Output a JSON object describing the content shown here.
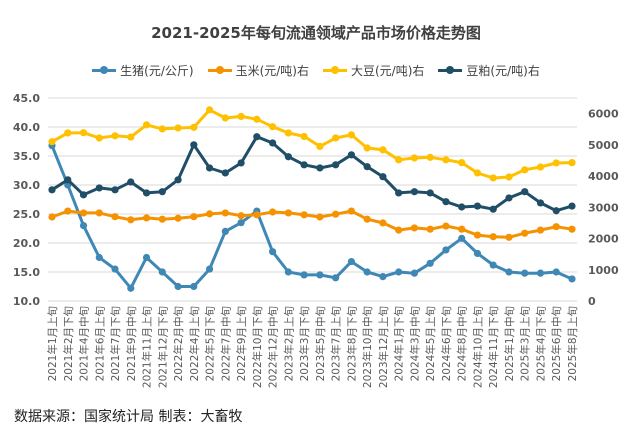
{
  "chart_data": {
    "type": "line",
    "title": "2021-2025年每旬流通领域产品市场价格走势图",
    "categories": [
      "2021年1月上旬",
      "2021年2月下旬",
      "2021年4月中旬",
      "2021年6月上旬",
      "2021年7月下旬",
      "2021年9月中旬",
      "2021年11月上旬",
      "2021年12月下旬",
      "2022年2月中旬",
      "2022年4月上旬",
      "2022年5月下旬",
      "2022年7月中旬",
      "2022年9月上旬",
      "2022年10月下旬",
      "2022年12月中旬",
      "2023年2月上旬",
      "2023年3月下旬",
      "2023年5月中旬",
      "2023年7月上旬",
      "2023年8月下旬",
      "2023年10月中旬",
      "2023年12月上旬",
      "2024年1月下旬",
      "2024年3月中旬",
      "2024年5月上旬",
      "2024年6月下旬",
      "2024年8月中旬",
      "2024年10月上旬",
      "2024年11月下旬",
      "2025年1月中旬",
      "2025年3月上旬",
      "2025年4月下旬",
      "2025年6月中旬",
      "2025年8月上旬"
    ],
    "left_axis": {
      "ylim": [
        10,
        45
      ],
      "ticks": [
        "10.0",
        "15.0",
        "20.0",
        "25.0",
        "30.0",
        "35.0",
        "40.0",
        "45.0"
      ]
    },
    "right_axis": {
      "ylim": [
        0,
        6500
      ],
      "ticks": [
        "0",
        "1000",
        "2000",
        "3000",
        "4000",
        "5000",
        "6000"
      ]
    },
    "grid": true,
    "legend_position": "top",
    "series": [
      {
        "name": "生猪(元/公斤)",
        "axis": "left",
        "color": "#3F88B5",
        "values": [
          36.8,
          30,
          23,
          17.5,
          15.5,
          12.2,
          17.5,
          15,
          12.5,
          12.5,
          15.5,
          22,
          23.5,
          25.5,
          18.5,
          15,
          14.5,
          14.5,
          14,
          16.8,
          15,
          14.2,
          15,
          14.8,
          16.5,
          18.8,
          20.8,
          18.2,
          16.2,
          15,
          14.8,
          14.8,
          15,
          13.8
        ]
      },
      {
        "name": "玉米(元/吨)右",
        "axis": "right",
        "color": "#F59200",
        "values": [
          2690,
          2880,
          2820,
          2820,
          2700,
          2600,
          2660,
          2620,
          2650,
          2700,
          2790,
          2820,
          2730,
          2760,
          2850,
          2820,
          2760,
          2690,
          2780,
          2880,
          2620,
          2500,
          2270,
          2340,
          2300,
          2400,
          2300,
          2110,
          2060,
          2040,
          2170,
          2270,
          2380,
          2300
        ]
      },
      {
        "name": "大豆(元/吨)右",
        "axis": "right",
        "color": "#FFC000",
        "values": [
          5100,
          5380,
          5390,
          5220,
          5290,
          5250,
          5640,
          5510,
          5540,
          5560,
          6120,
          5860,
          5910,
          5820,
          5580,
          5380,
          5270,
          4950,
          5220,
          5320,
          4900,
          4840,
          4520,
          4580,
          4600,
          4520,
          4430,
          4100,
          3940,
          3970,
          4200,
          4290,
          4420,
          4430
        ]
      },
      {
        "name": "豆粕(元/吨)右",
        "axis": "right",
        "color": "#1F4E66",
        "values": [
          3560,
          3880,
          3400,
          3620,
          3560,
          3810,
          3460,
          3500,
          3880,
          5000,
          4260,
          4100,
          4420,
          5260,
          5060,
          4620,
          4360,
          4260,
          4360,
          4680,
          4300,
          3980,
          3460,
          3500,
          3460,
          3180,
          3010,
          3040,
          2940,
          3300,
          3500,
          3140,
          2890,
          3040
        ]
      }
    ]
  },
  "footer": "数据来源：国家统计局  制表：大畜牧"
}
